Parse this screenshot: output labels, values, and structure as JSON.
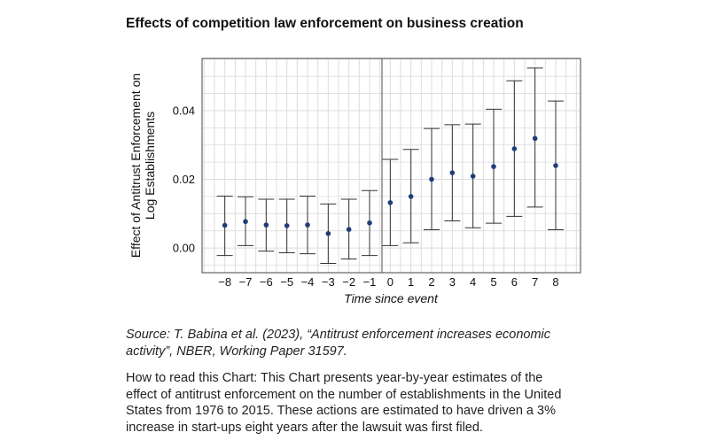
{
  "chart_data": {
    "type": "scatter",
    "title": "Effects of competition law enforcement on business creation",
    "xlabel": "Time since event",
    "ylabel_lines": [
      "Effect of Antitrust Enforcement on",
      "Log Establishments"
    ],
    "x": [
      -8,
      -7,
      -6,
      -5,
      -4,
      -3,
      -2,
      -1,
      0,
      1,
      2,
      3,
      4,
      5,
      6,
      7,
      8
    ],
    "x_tick_labels": [
      "−8",
      "−7",
      "−6",
      "−5",
      "−4",
      "−3",
      "−2",
      "−1",
      "0",
      "1",
      "2",
      "3",
      "4",
      "5",
      "6",
      "7",
      "8"
    ],
    "series": [
      {
        "estimate": [
          0.0066,
          0.0077,
          0.0067,
          0.0065,
          0.0067,
          0.0042,
          0.0054,
          0.0073,
          0.0132,
          0.015,
          0.02,
          0.0219,
          0.0209,
          0.0237,
          0.0289,
          0.0319,
          0.024
        ],
        "ci_upper": [
          0.0151,
          0.0149,
          0.0142,
          0.0142,
          0.0151,
          0.0128,
          0.0142,
          0.0167,
          0.0258,
          0.0287,
          0.0348,
          0.0359,
          0.0361,
          0.0404,
          0.0487,
          0.0524,
          0.0428
        ],
        "ci_lower": [
          -0.0022,
          0.0007,
          -0.0009,
          -0.0014,
          -0.0017,
          -0.0045,
          -0.0032,
          -0.0022,
          0.0007,
          0.0015,
          0.0053,
          0.0079,
          0.0059,
          0.0072,
          0.0092,
          0.0119,
          0.0053
        ]
      }
    ],
    "y_ticks": [
      0.0,
      0.02,
      0.04
    ],
    "y_tick_labels": [
      "0.00",
      "0.02",
      "0.04"
    ],
    "xlim": [
      -9.1,
      9.2
    ],
    "ylim": [
      -0.0072,
      0.0552
    ],
    "event_line_x": -0.4,
    "grid": true,
    "colors": {
      "point": "#1f3b7a",
      "errorbar": "#333333",
      "grid": "#dcdcdc",
      "event_line": "#5a4a4a"
    }
  },
  "source_lines": [
    "Source: T. Babina et al. (2023), “Antitrust enforcement increases economic",
    "activity”, NBER, Working Paper 31597."
  ],
  "how_to_read_lines": [
    "How to read this Chart: This Chart presents year-by-year estimates of the",
    "effect of antitrust enforcement on the number of establishments in the United",
    "States from 1976 to 2015. These actions are estimated to have driven a 3%",
    "increase in start-ups eight years after the lawsuit was first filed."
  ]
}
